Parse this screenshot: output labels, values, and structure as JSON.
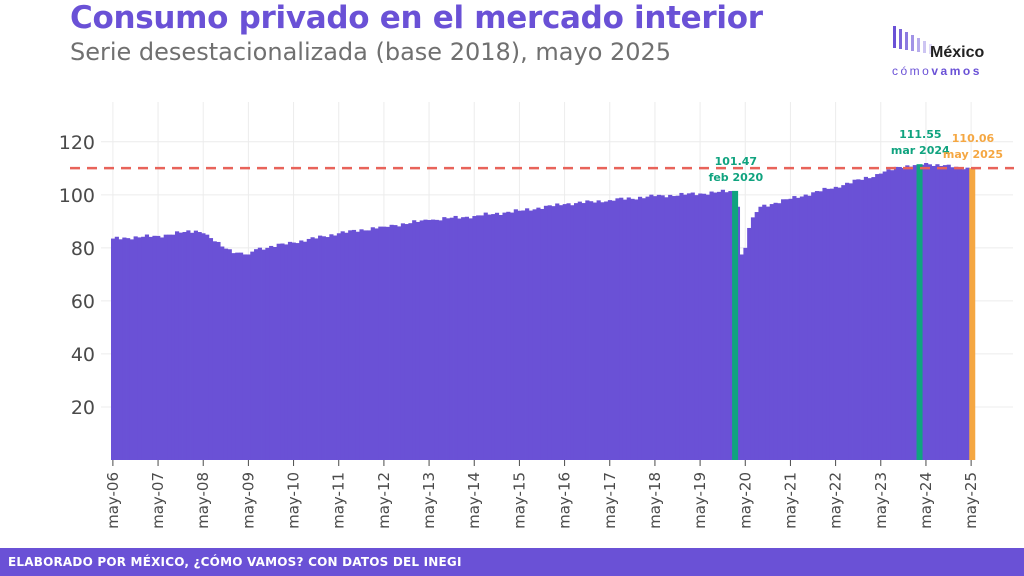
{
  "header": {
    "title": "Consumo privado en el mercado interior",
    "subtitle": "Serie desestacionalizada (base 2018), mayo 2025"
  },
  "logo": {
    "top": "México",
    "bottom_light": "cómo",
    "bottom_bold": "vamos"
  },
  "footer": {
    "text": "ELABORADO POR MÉXICO, ¿CÓMO VAMOS? CON DATOS DEL INEGI"
  },
  "colors": {
    "bar": "#6a51d6",
    "highlight": "#10a37f",
    "latest": "#f5a742",
    "reference": "#e8635a",
    "grid": "#ececec",
    "axis_text": "#4a4a4a"
  },
  "chart_data": {
    "type": "bar",
    "x_tick_labels": [
      "may-06",
      "may-07",
      "may-08",
      "may-09",
      "may-10",
      "may-11",
      "may-12",
      "may-13",
      "may-14",
      "may-15",
      "may-16",
      "may-17",
      "may-18",
      "may-19",
      "may-20",
      "may-21",
      "may-22",
      "may-23",
      "may-24",
      "may-25"
    ],
    "start": "may-06",
    "frequency": "monthly",
    "ylim": [
      0,
      135
    ],
    "yticks": [
      20,
      40,
      60,
      80,
      100,
      120
    ],
    "grid": true,
    "reference_line": {
      "value": 110.06,
      "style": "dashed"
    },
    "annotations": [
      {
        "value_label": "101.47",
        "date_label": "feb 2020",
        "date": "2020-02",
        "color": "highlight"
      },
      {
        "value_label": "111.55",
        "date_label": "mar 2024",
        "date": "2024-03",
        "color": "highlight"
      },
      {
        "value_label": "110.06",
        "date_label": "may 2025",
        "date": "2025-05",
        "color": "latest"
      }
    ],
    "anchors": [
      [
        "2006-05",
        83.5
      ],
      [
        "2007-05",
        84.5
      ],
      [
        "2008-03",
        86.5
      ],
      [
        "2008-05",
        85.5
      ],
      [
        "2008-10",
        80.5
      ],
      [
        "2009-02",
        78.2
      ],
      [
        "2009-05",
        77.5
      ],
      [
        "2009-07",
        79.5
      ],
      [
        "2010-05",
        82.0
      ],
      [
        "2011-05",
        85.5
      ],
      [
        "2012-05",
        88.0
      ],
      [
        "2013-05",
        90.5
      ],
      [
        "2014-05",
        92.0
      ],
      [
        "2015-05",
        94.0
      ],
      [
        "2016-05",
        96.5
      ],
      [
        "2017-05",
        98.0
      ],
      [
        "2018-05",
        99.5
      ],
      [
        "2019-05",
        100.5
      ],
      [
        "2020-02",
        101.47
      ],
      [
        "2020-03",
        95.5
      ],
      [
        "2020-04",
        77.5
      ],
      [
        "2020-05",
        80.0
      ],
      [
        "2020-06",
        87.5
      ],
      [
        "2020-07",
        91.5
      ],
      [
        "2020-09",
        95.5
      ],
      [
        "2021-05",
        98.5
      ],
      [
        "2022-05",
        103.0
      ],
      [
        "2023-05",
        108.0
      ],
      [
        "2023-10",
        110.5
      ],
      [
        "2024-03",
        111.55
      ],
      [
        "2024-06",
        111.5
      ],
      [
        "2024-10",
        111.2
      ],
      [
        "2025-02",
        110.0
      ],
      [
        "2025-05",
        110.06
      ]
    ]
  }
}
